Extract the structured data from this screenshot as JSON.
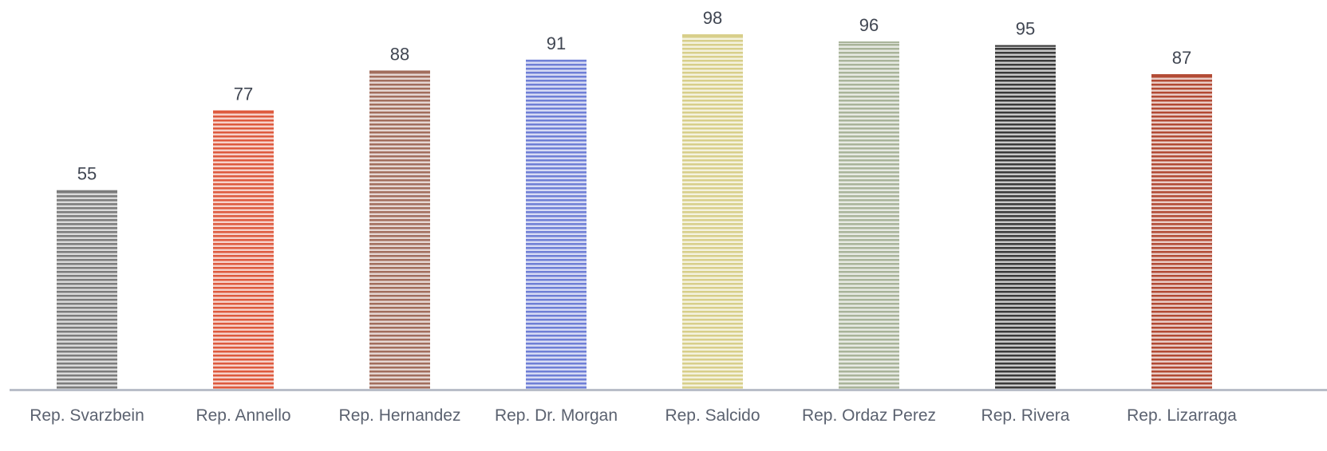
{
  "chart_data": {
    "type": "bar",
    "categories": [
      "Rep. Svarzbein",
      "Rep. Annello",
      "Rep. Hernandez",
      "Rep. Dr. Morgan",
      "Rep. Salcido",
      "Rep. Ordaz Perez",
      "Rep. Rivera",
      "Rep. Lizarraga"
    ],
    "values": [
      55,
      77,
      88,
      91,
      98,
      96,
      95,
      87
    ],
    "data_labels": [
      "55",
      "77",
      "88",
      "91",
      "98",
      "96",
      "95",
      "87"
    ],
    "title": "",
    "xlabel": "",
    "ylabel": "",
    "ylim": [
      0,
      98
    ],
    "grid": false,
    "legend": "none",
    "fill_pattern": "horizontal-stripes",
    "bar_colors": [
      "#7c7c7c",
      "#de5a3e",
      "#a26e5d",
      "#6f7fd6",
      "#d8cf8a",
      "#a9b49a",
      "#3a3a3a",
      "#b24a34"
    ],
    "axis_color": "#b9bec8",
    "label_color": "#404652"
  }
}
